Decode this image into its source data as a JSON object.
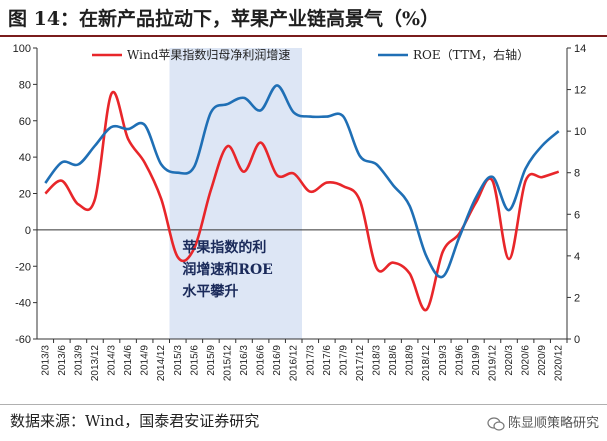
{
  "header": {
    "title": "图 14：在新产品拉动下，苹果产业链高景气（%）"
  },
  "footer": {
    "source": "数据来源：Wind，国泰君安证券研究",
    "watermark": "陈显顺策略研究"
  },
  "chart_data": {
    "type": "line",
    "title": "图 14：在新产品拉动下，苹果产业链高景气（%）",
    "x": [
      "2013/3",
      "2013/6",
      "2013/9",
      "2013/12",
      "2014/3",
      "2014/6",
      "2014/9",
      "2014/12",
      "2015/3",
      "2015/6",
      "2015/9",
      "2015/12",
      "2016/3",
      "2016/6",
      "2016/9",
      "2016/12",
      "2017/3",
      "2017/6",
      "2017/9",
      "2017/12",
      "2018/3",
      "2018/6",
      "2018/9",
      "2018/12",
      "2019/3",
      "2019/6",
      "2019/9",
      "2019/12",
      "2020/3",
      "2020/6",
      "2020/9",
      "2020/12"
    ],
    "y_left_range": [
      -60,
      100
    ],
    "y_left_ticks": [
      -60,
      -40,
      -20,
      0,
      20,
      40,
      60,
      80,
      100
    ],
    "y_right_range": [
      0,
      14
    ],
    "y_right_ticks": [
      0,
      2,
      4,
      6,
      8,
      10,
      12,
      14
    ],
    "series": [
      {
        "name": "Wind苹果指数归母净利润增速",
        "axis": "left",
        "color": "#e8262a",
        "values": [
          20,
          27,
          14,
          17,
          75,
          50,
          37,
          17,
          -15,
          -10,
          22,
          46,
          32,
          48,
          30,
          31,
          21,
          26,
          24,
          16,
          -21,
          -18,
          -24,
          -44,
          -12,
          -2,
          15,
          27,
          -16,
          27,
          29,
          32
        ]
      },
      {
        "name": "ROE（TTM，右轴）",
        "axis": "right",
        "color": "#1f6fb5",
        "values": [
          7.5,
          8.5,
          8.4,
          9.3,
          10.2,
          10.1,
          10.3,
          8.4,
          8.0,
          8.3,
          10.9,
          11.3,
          11.6,
          11.0,
          12.2,
          10.9,
          10.7,
          10.7,
          10.7,
          8.8,
          8.4,
          7.4,
          6.4,
          4.0,
          3.0,
          4.9,
          6.8,
          7.8,
          6.2,
          8.2,
          9.3,
          10.0
        ]
      }
    ],
    "shaded_region": {
      "from": "2015/3",
      "to": "2017/3",
      "color": "#dde6f5"
    },
    "annotation": {
      "lines": [
        "苹果指数的利",
        "润增速和ROE",
        "水平攀升"
      ],
      "anchor": "2015/6"
    },
    "legend_position": "top",
    "grid": false
  }
}
